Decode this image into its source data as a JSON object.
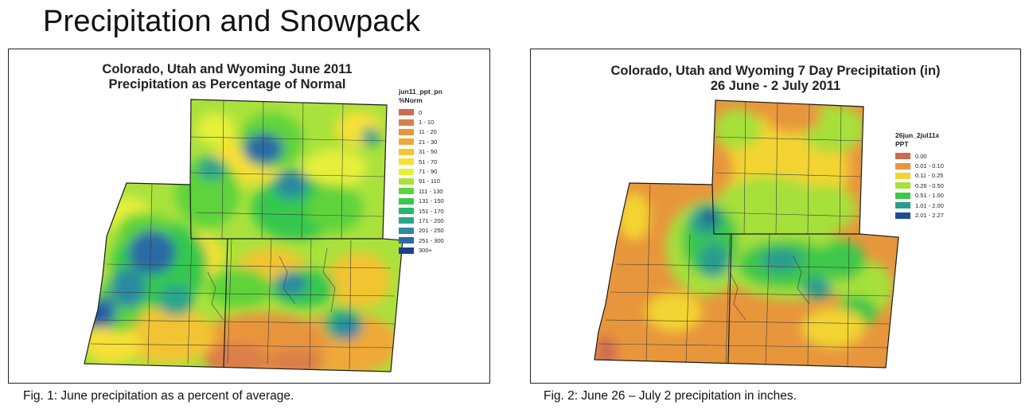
{
  "slide_title": "Precipitation and Snowpack",
  "figure1": {
    "title_line1": "Colorado, Utah and Wyoming June 2011",
    "title_line2": "Precipitation as Percentage of Normal",
    "legend_title_1": "jun11_ppt_pn",
    "legend_title_2": "%Norm",
    "legend": [
      {
        "label": "0",
        "color": "#cf6a52"
      },
      {
        "label": "1 - 10",
        "color": "#db7e4a"
      },
      {
        "label": "11 - 20",
        "color": "#e8943e"
      },
      {
        "label": "21 - 30",
        "color": "#efa937"
      },
      {
        "label": "31 - 50",
        "color": "#f3c433"
      },
      {
        "label": "51 - 70",
        "color": "#f7e034"
      },
      {
        "label": "71 - 90",
        "color": "#e6f03a"
      },
      {
        "label": "91 - 110",
        "color": "#a9e23c"
      },
      {
        "label": "111 - 130",
        "color": "#5fd33a"
      },
      {
        "label": "131 - 150",
        "color": "#36c84e"
      },
      {
        "label": "151 - 170",
        "color": "#2bb66e"
      },
      {
        "label": "171 - 200",
        "color": "#2aa58c"
      },
      {
        "label": "201 - 250",
        "color": "#2c8aa1"
      },
      {
        "label": "251 - 300",
        "color": "#2a6ba6"
      },
      {
        "label": "300+",
        "color": "#1c3f93"
      }
    ],
    "caption": "Fig. 1: June precipitation as a percent of average."
  },
  "figure2": {
    "title_line1": "Colorado, Utah and Wyoming 7 Day Precipitation (in)",
    "title_line2": "26 June - 2 July 2011",
    "legend_title_1": "26jun_2jul11x",
    "legend_title_2": "PPT",
    "legend": [
      {
        "label": "0.00",
        "color": "#cf6a52"
      },
      {
        "label": "0.01 - 0.10",
        "color": "#e8963c"
      },
      {
        "label": "0.11 - 0.25",
        "color": "#f3d433"
      },
      {
        "label": "0.26 - 0.50",
        "color": "#a6e03a"
      },
      {
        "label": "0.51 - 1.00",
        "color": "#3cc84a"
      },
      {
        "label": "1.01 - 2.00",
        "color": "#2a9c8f"
      },
      {
        "label": "2.01 - 2.27",
        "color": "#1d4a9a"
      }
    ],
    "caption": "Fig. 2:  June 26 – July 2 precipitation in inches."
  }
}
